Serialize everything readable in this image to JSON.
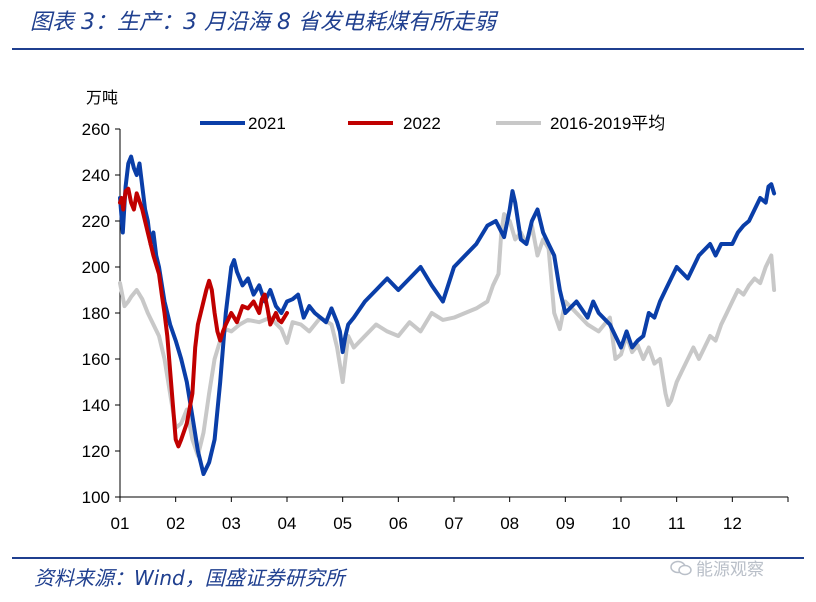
{
  "header": {
    "title": "图表 3：生产：3 月沿海 8 省发电耗煤有所走弱"
  },
  "footer": {
    "source": "资料来源：Wind，国盛证券研究所",
    "watermark": "能源观察"
  },
  "colors": {
    "brand": "#1f3f8f",
    "s2021": "#0a3ea8",
    "s2022": "#c00000",
    "savg": "#c8c8c8"
  },
  "chart_data": {
    "type": "line",
    "title": "",
    "ylabel": "万吨",
    "xlabel": "",
    "ylim": [
      100,
      260
    ],
    "yticks": [
      100,
      120,
      140,
      160,
      180,
      200,
      220,
      240,
      260
    ],
    "xlim": [
      1,
      13
    ],
    "xtick_labels": [
      "01",
      "02",
      "03",
      "04",
      "05",
      "06",
      "07",
      "08",
      "09",
      "10",
      "11",
      "12"
    ],
    "legend": [
      "2021",
      "2022",
      "2016-2019平均"
    ],
    "series": [
      {
        "name": "2016-2019平均",
        "x": [
          1.0,
          1.08,
          1.15,
          1.2,
          1.3,
          1.4,
          1.5,
          1.6,
          1.7,
          1.8,
          1.9,
          2.0,
          2.1,
          2.2,
          2.3,
          2.4,
          2.5,
          2.6,
          2.7,
          2.8,
          2.9,
          3.0,
          3.15,
          3.3,
          3.5,
          3.7,
          3.9,
          4.0,
          4.1,
          4.25,
          4.4,
          4.6,
          4.8,
          4.9,
          5.0,
          5.1,
          5.2,
          5.4,
          5.6,
          5.8,
          6.0,
          6.2,
          6.4,
          6.6,
          6.8,
          7.0,
          7.2,
          7.4,
          7.6,
          7.7,
          7.8,
          7.85,
          7.9,
          8.0,
          8.1,
          8.2,
          8.3,
          8.4,
          8.5,
          8.6,
          8.7,
          8.8,
          8.9,
          9.0,
          9.2,
          9.4,
          9.6,
          9.8,
          9.9,
          10.0,
          10.1,
          10.2,
          10.3,
          10.4,
          10.5,
          10.6,
          10.7,
          10.8,
          10.85,
          10.9,
          11.0,
          11.1,
          11.2,
          11.3,
          11.4,
          11.5,
          11.6,
          11.7,
          11.8,
          11.9,
          12.0,
          12.1,
          12.2,
          12.3,
          12.4,
          12.5,
          12.6,
          12.7,
          12.75
        ],
        "values": [
          193,
          183,
          185,
          187,
          190,
          186,
          180,
          175,
          170,
          160,
          145,
          130,
          132,
          138,
          125,
          118,
          128,
          145,
          160,
          168,
          173,
          172,
          175,
          177,
          176,
          178,
          173,
          167,
          176,
          175,
          172,
          178,
          175,
          165,
          150,
          170,
          165,
          170,
          175,
          172,
          170,
          176,
          172,
          180,
          177,
          178,
          180,
          182,
          185,
          192,
          197,
          215,
          223,
          220,
          212,
          215,
          210,
          218,
          205,
          212,
          208,
          180,
          173,
          185,
          180,
          175,
          172,
          178,
          160,
          162,
          170,
          163,
          166,
          160,
          165,
          158,
          160,
          145,
          140,
          142,
          150,
          155,
          160,
          165,
          160,
          165,
          170,
          168,
          175,
          180,
          185,
          190,
          188,
          192,
          195,
          193,
          200,
          205,
          190
        ]
      },
      {
        "name": "2021",
        "x": [
          1.0,
          1.05,
          1.1,
          1.15,
          1.2,
          1.25,
          1.3,
          1.35,
          1.4,
          1.45,
          1.5,
          1.55,
          1.6,
          1.65,
          1.7,
          1.8,
          1.9,
          2.0,
          2.1,
          2.2,
          2.3,
          2.4,
          2.5,
          2.6,
          2.7,
          2.8,
          2.9,
          3.0,
          3.05,
          3.1,
          3.2,
          3.3,
          3.4,
          3.5,
          3.6,
          3.7,
          3.8,
          3.9,
          4.0,
          4.1,
          4.2,
          4.3,
          4.4,
          4.5,
          4.6,
          4.7,
          4.8,
          4.9,
          4.95,
          5.0,
          5.05,
          5.1,
          5.2,
          5.4,
          5.6,
          5.8,
          6.0,
          6.2,
          6.4,
          6.6,
          6.8,
          7.0,
          7.2,
          7.4,
          7.6,
          7.75,
          7.9,
          8.0,
          8.05,
          8.1,
          8.2,
          8.3,
          8.4,
          8.5,
          8.6,
          8.7,
          8.8,
          8.9,
          9.0,
          9.2,
          9.4,
          9.5,
          9.6,
          9.8,
          10.0,
          10.1,
          10.2,
          10.3,
          10.4,
          10.5,
          10.6,
          10.7,
          10.8,
          10.9,
          11.0,
          11.2,
          11.4,
          11.6,
          11.7,
          11.8,
          11.9,
          12.0,
          12.1,
          12.2,
          12.3,
          12.4,
          12.5,
          12.6,
          12.65,
          12.7,
          12.75
        ],
        "values": [
          230,
          215,
          235,
          245,
          248,
          243,
          240,
          245,
          235,
          225,
          220,
          210,
          215,
          205,
          200,
          185,
          175,
          168,
          160,
          150,
          135,
          120,
          110,
          115,
          125,
          150,
          180,
          200,
          203,
          198,
          192,
          195,
          188,
          192,
          185,
          190,
          183,
          180,
          185,
          186,
          188,
          178,
          183,
          180,
          178,
          176,
          182,
          176,
          172,
          163,
          170,
          175,
          178,
          185,
          190,
          195,
          190,
          195,
          200,
          192,
          185,
          200,
          205,
          210,
          218,
          220,
          213,
          225,
          233,
          228,
          212,
          210,
          220,
          225,
          215,
          210,
          205,
          190,
          180,
          185,
          178,
          185,
          180,
          175,
          165,
          172,
          165,
          168,
          170,
          180,
          178,
          185,
          190,
          195,
          200,
          195,
          205,
          210,
          205,
          210,
          210,
          210,
          215,
          218,
          220,
          225,
          230,
          228,
          235,
          236,
          232
        ]
      },
      {
        "name": "2022",
        "x": [
          1.0,
          1.03,
          1.06,
          1.1,
          1.15,
          1.2,
          1.25,
          1.3,
          1.4,
          1.5,
          1.6,
          1.7,
          1.75,
          1.8,
          1.85,
          1.9,
          1.95,
          2.0,
          2.05,
          2.1,
          2.2,
          2.3,
          2.35,
          2.4,
          2.5,
          2.55,
          2.6,
          2.65,
          2.7,
          2.75,
          2.8,
          2.85,
          2.9,
          3.0,
          3.1,
          3.2,
          3.3,
          3.4,
          3.5,
          3.55,
          3.6,
          3.65,
          3.7,
          3.8,
          3.85,
          3.9,
          3.95,
          4.0
        ],
        "values": [
          228,
          230,
          225,
          233,
          234,
          228,
          225,
          232,
          225,
          215,
          205,
          197,
          188,
          180,
          170,
          155,
          140,
          125,
          122,
          125,
          132,
          145,
          165,
          175,
          185,
          190,
          194,
          190,
          180,
          172,
          168,
          172,
          175,
          180,
          176,
          183,
          182,
          185,
          180,
          186,
          188,
          182,
          175,
          180,
          177,
          176,
          178,
          180
        ]
      }
    ]
  }
}
